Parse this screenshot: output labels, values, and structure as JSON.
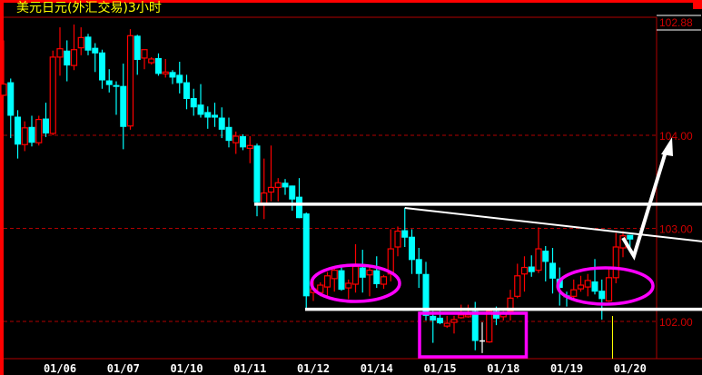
{
  "title": "美元日元(外汇交易)3小时",
  "colors": {
    "up": "#ff0000",
    "down": "#00ffff",
    "doji": "#ffffff",
    "grid": "#b00000",
    "annotation_lines": "#ffffff",
    "annotation_shapes": "#ff00ff",
    "marker": "#ffff00",
    "title": "#ffff00"
  },
  "chart_data": {
    "type": "candlestick",
    "ylim": [
      101.6,
      105.26
    ],
    "yticks": [
      "102.00",
      "103.00",
      "104.00"
    ],
    "ytick_values": [
      102,
      103,
      104
    ],
    "current_price_label": "102.88",
    "grid": "dashed at y ticks",
    "xtick_labels": [
      "01/06",
      "01/07",
      "01/10",
      "01/11",
      "01/12",
      "01/14",
      "01/15",
      "01/18",
      "01/19",
      "01/20"
    ],
    "xtick_candle_index": [
      8,
      17,
      26,
      35,
      44,
      53,
      62,
      71,
      80,
      89
    ],
    "ohlc_fields": [
      "open",
      "high",
      "low",
      "close"
    ],
    "candles": [
      [
        104.43,
        105.02,
        104.42,
        104.55
      ],
      [
        104.57,
        104.61,
        103.97,
        104.21
      ],
      [
        104.2,
        104.27,
        103.75,
        103.9
      ],
      [
        103.9,
        104.15,
        103.83,
        104.08
      ],
      [
        104.09,
        104.21,
        103.88,
        103.92
      ],
      [
        103.92,
        104.21,
        103.89,
        104.17
      ],
      [
        104.18,
        104.35,
        103.98,
        104.02
      ],
      [
        104.02,
        104.91,
        104.0,
        104.84
      ],
      [
        104.84,
        105.16,
        104.64,
        104.93
      ],
      [
        104.91,
        105.02,
        104.58,
        104.75
      ],
      [
        104.75,
        105.19,
        104.7,
        104.92
      ],
      [
        104.94,
        105.16,
        104.86,
        105.05
      ],
      [
        105.06,
        105.09,
        104.86,
        104.91
      ],
      [
        104.94,
        104.99,
        104.68,
        104.88
      ],
      [
        104.89,
        104.92,
        104.5,
        104.59
      ],
      [
        104.59,
        104.71,
        104.46,
        104.54
      ],
      [
        104.54,
        104.58,
        104.22,
        104.52
      ],
      [
        104.53,
        104.77,
        103.85,
        104.09
      ],
      [
        104.1,
        105.14,
        104.06,
        105.07
      ],
      [
        105.07,
        105.08,
        104.65,
        104.81
      ],
      [
        104.83,
        104.92,
        104.71,
        104.92
      ],
      [
        104.78,
        104.84,
        104.76,
        104.82
      ],
      [
        104.83,
        104.88,
        104.64,
        104.66
      ],
      [
        104.66,
        104.82,
        104.62,
        104.68
      ],
      [
        104.68,
        104.7,
        104.55,
        104.62
      ],
      [
        104.65,
        104.79,
        104.45,
        104.56
      ],
      [
        104.57,
        104.65,
        104.28,
        104.39
      ],
      [
        104.4,
        104.5,
        104.21,
        104.3
      ],
      [
        104.33,
        104.55,
        104.19,
        104.22
      ],
      [
        104.25,
        104.31,
        104.07,
        104.19
      ],
      [
        104.22,
        104.35,
        104.09,
        104.19
      ],
      [
        104.19,
        104.3,
        103.97,
        104.06
      ],
      [
        104.09,
        104.19,
        103.87,
        103.94
      ],
      [
        103.92,
        104.04,
        103.8,
        103.99
      ],
      [
        103.99,
        104.01,
        103.84,
        103.87
      ],
      [
        103.86,
        103.99,
        103.7,
        103.89
      ],
      [
        103.89,
        103.91,
        103.13,
        103.28
      ],
      [
        103.27,
        103.75,
        103.1,
        103.38
      ],
      [
        103.39,
        103.89,
        103.29,
        103.44
      ],
      [
        103.44,
        103.54,
        103.29,
        103.49
      ],
      [
        103.49,
        103.53,
        103.36,
        103.44
      ],
      [
        103.46,
        103.46,
        103.19,
        103.31
      ],
      [
        103.34,
        103.54,
        103.11,
        103.11
      ],
      [
        103.16,
        103.17,
        102.14,
        102.27
      ],
      [
        102.31,
        102.48,
        102.22,
        102.35
      ],
      [
        102.31,
        102.42,
        102.27,
        102.39
      ],
      [
        102.37,
        102.53,
        102.27,
        102.49
      ],
      [
        102.46,
        102.58,
        102.32,
        102.55
      ],
      [
        102.55,
        102.58,
        102.33,
        102.34
      ],
      [
        102.36,
        102.45,
        102.24,
        102.41
      ],
      [
        102.4,
        102.83,
        102.31,
        102.59
      ],
      [
        102.58,
        102.77,
        102.31,
        102.47
      ],
      [
        102.5,
        102.58,
        102.27,
        102.55
      ],
      [
        102.55,
        102.7,
        102.36,
        102.4
      ],
      [
        102.4,
        102.5,
        102.35,
        102.48
      ],
      [
        102.51,
        102.99,
        102.43,
        102.78
      ],
      [
        102.8,
        103.02,
        102.7,
        102.97
      ],
      [
        102.98,
        103.22,
        102.8,
        102.9
      ],
      [
        102.91,
        102.99,
        102.51,
        102.66
      ],
      [
        102.67,
        102.79,
        102.36,
        102.51
      ],
      [
        102.51,
        102.64,
        102.01,
        102.06
      ],
      [
        102.06,
        102.11,
        101.77,
        102.01
      ],
      [
        102.04,
        102.11,
        101.97,
        101.98
      ],
      [
        101.95,
        102.06,
        101.93,
        101.98
      ],
      [
        101.99,
        102.06,
        101.87,
        102.02
      ],
      [
        102.04,
        102.18,
        102.03,
        102.07
      ],
      [
        102.05,
        102.18,
        102.04,
        102.07
      ],
      [
        102.11,
        102.21,
        101.69,
        101.79
      ],
      [
        101.79,
        101.99,
        101.66,
        101.79
      ],
      [
        101.78,
        102.12,
        101.77,
        102.11
      ],
      [
        102.11,
        102.16,
        101.96,
        102.03
      ],
      [
        102.05,
        102.11,
        102.01,
        102.09
      ],
      [
        102.11,
        102.34,
        102.01,
        102.25
      ],
      [
        102.27,
        102.62,
        102.25,
        102.49
      ],
      [
        102.51,
        102.7,
        102.32,
        102.58
      ],
      [
        102.59,
        102.71,
        102.48,
        102.53
      ],
      [
        102.55,
        103.01,
        102.52,
        102.78
      ],
      [
        102.76,
        102.81,
        102.43,
        102.64
      ],
      [
        102.63,
        102.79,
        102.3,
        102.46
      ],
      [
        102.46,
        102.58,
        102.17,
        102.36
      ],
      [
        102.28,
        102.32,
        102.16,
        102.26
      ],
      [
        102.27,
        102.45,
        102.22,
        102.34
      ],
      [
        102.35,
        102.49,
        102.32,
        102.39
      ],
      [
        102.37,
        102.51,
        102.27,
        102.44
      ],
      [
        102.43,
        102.67,
        102.29,
        102.32
      ],
      [
        102.33,
        102.45,
        102.02,
        102.24
      ],
      [
        102.22,
        102.59,
        102.21,
        102.47
      ],
      [
        102.47,
        102.95,
        102.41,
        102.8
      ],
      [
        102.79,
        102.97,
        102.69,
        102.92
      ],
      [
        102.93,
        102.93,
        102.8,
        102.88
      ]
    ],
    "annotations": {
      "resistance_level": 103.26,
      "support_level": 102.13,
      "trendline": {
        "from_candle": 57,
        "from_price": 103.22,
        "to_price": 102.86
      },
      "arrow_target": 103.94,
      "ellipses_candle_ranges": [
        [
          44,
          56
        ],
        [
          79,
          92
        ]
      ],
      "box_candle_range": [
        60,
        74
      ]
    }
  }
}
